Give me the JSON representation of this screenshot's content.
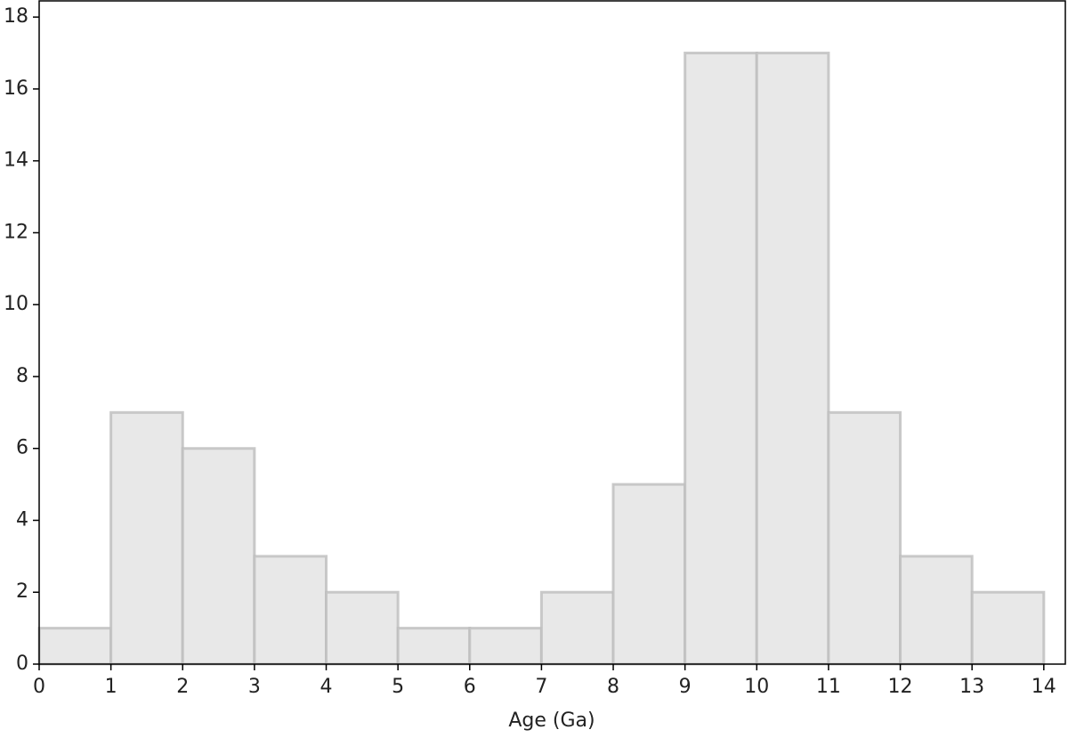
{
  "chart_data": {
    "type": "histogram",
    "x_label": "Age (Ga)",
    "bins": [
      0,
      1,
      2,
      3,
      4,
      5,
      6,
      7,
      8,
      9,
      10,
      11,
      12,
      13,
      14
    ],
    "values": [
      1,
      7,
      6,
      3,
      2,
      1,
      1,
      2,
      5,
      17,
      17,
      7,
      3,
      2
    ],
    "color": "#e8e8e8",
    "edge_color": "#bdbdbd",
    "xlim": [
      0,
      14.3
    ],
    "ylim": [
      0,
      18.45
    ],
    "xticks": [
      0,
      1,
      2,
      3,
      4,
      5,
      6,
      7,
      8,
      9,
      10,
      11,
      12,
      13,
      14
    ],
    "yticks": [
      0,
      2,
      4,
      6,
      8,
      10,
      12,
      14,
      16,
      18
    ]
  }
}
